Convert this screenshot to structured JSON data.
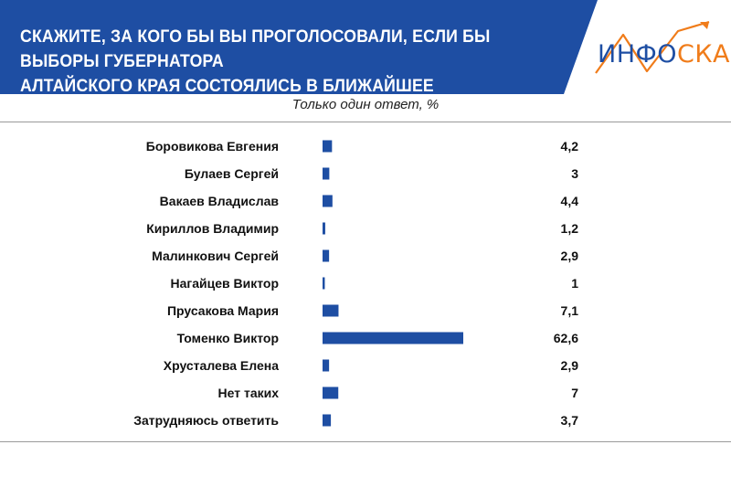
{
  "header": {
    "title_line1": "Скажите, за кого бы вы проголосовали, если бы выборы губернатора",
    "title_line2": "Алтайского края состоялись в ближайшее воскресенье?",
    "logo_part1": "ИНФО",
    "logo_part2": "СКАН",
    "colors": {
      "band": "#1e4ea3",
      "logo_accent": "#f07c1a"
    }
  },
  "subtitle": "Только один ответ, %",
  "chart_data": {
    "type": "bar",
    "orientation": "horizontal",
    "unit": "%",
    "categories": [
      "Боровикова Евгения",
      "Булаев Сергей",
      "Вакаев Владислав",
      "Кириллов Владимир",
      "Малинкович Сергей",
      "Нагайцев Виктор",
      "Прусакова Мария",
      "Томенко Виктор",
      "Хрусталева Елена",
      "Нет таких",
      "Затрудняюсь ответить"
    ],
    "values": [
      4.2,
      3,
      4.4,
      1.2,
      2.9,
      1,
      7.1,
      62.6,
      2.9,
      7,
      3.7
    ],
    "value_labels": [
      "4,2",
      "3",
      "4,4",
      "1,2",
      "2,9",
      "1",
      "7,1",
      "62,6",
      "2,9",
      "7",
      "3,7"
    ],
    "bar_color": "#1e4ea3",
    "grid": false
  }
}
